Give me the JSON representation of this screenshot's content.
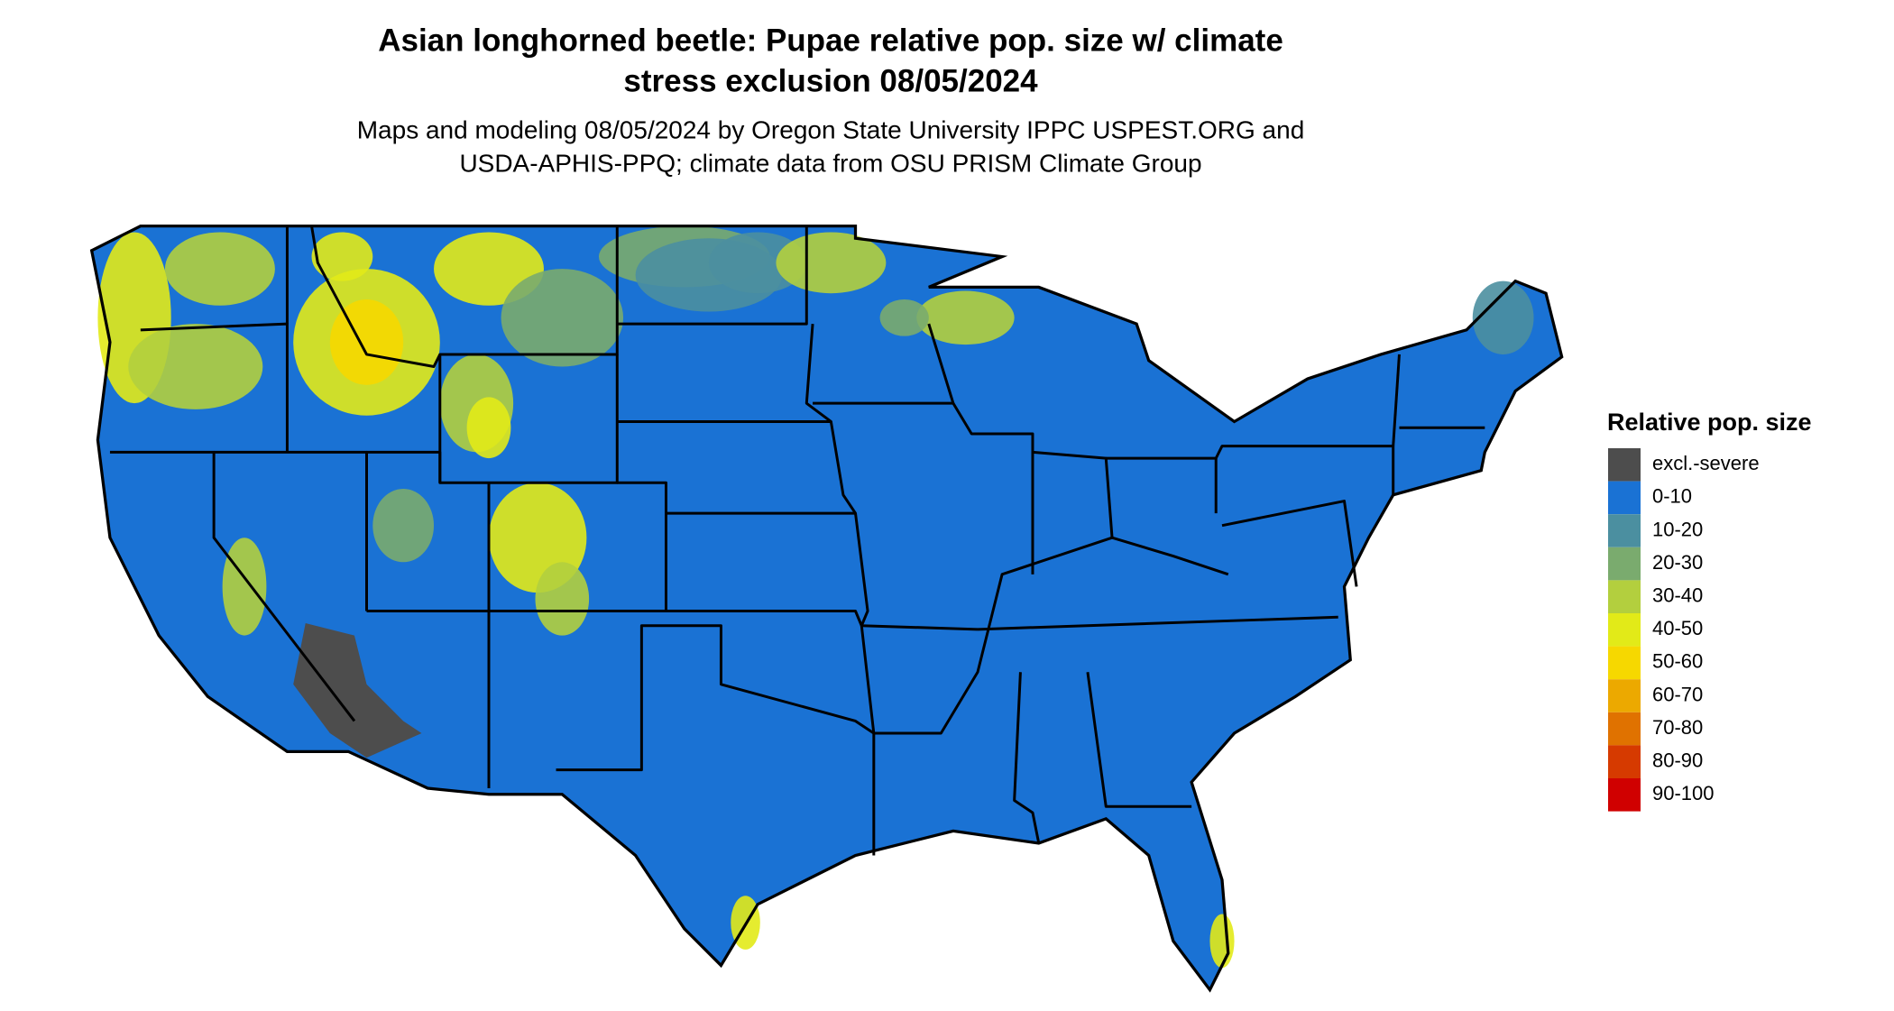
{
  "header": {
    "title": [
      "Asian longhorned beetle: Pupae relative pop. size w/ climate",
      "stress exclusion 08/05/2024"
    ],
    "subtitle": [
      "Maps and modeling 08/05/2024 by Oregon State University IPPC USPEST.ORG and",
      "USDA-APHIS-PPQ; climate data from OSU PRISM Climate Group"
    ]
  },
  "legend": {
    "title": "Relative pop. size",
    "items": [
      {
        "label": "excl.-severe",
        "color": "#4d4d4d"
      },
      {
        "label": "0-10",
        "color": "#1a72d4"
      },
      {
        "label": "10-20",
        "color": "#4b8fa0"
      },
      {
        "label": "20-30",
        "color": "#7aab6e"
      },
      {
        "label": "30-40",
        "color": "#b3cf3e"
      },
      {
        "label": "40-50",
        "color": "#e2ea18"
      },
      {
        "label": "50-60",
        "color": "#f6d800"
      },
      {
        "label": "60-70",
        "color": "#eca900"
      },
      {
        "label": "70-80",
        "color": "#e07200"
      },
      {
        "label": "80-90",
        "color": "#d63a00"
      },
      {
        "label": "90-100",
        "color": "#d00000"
      }
    ]
  }
}
